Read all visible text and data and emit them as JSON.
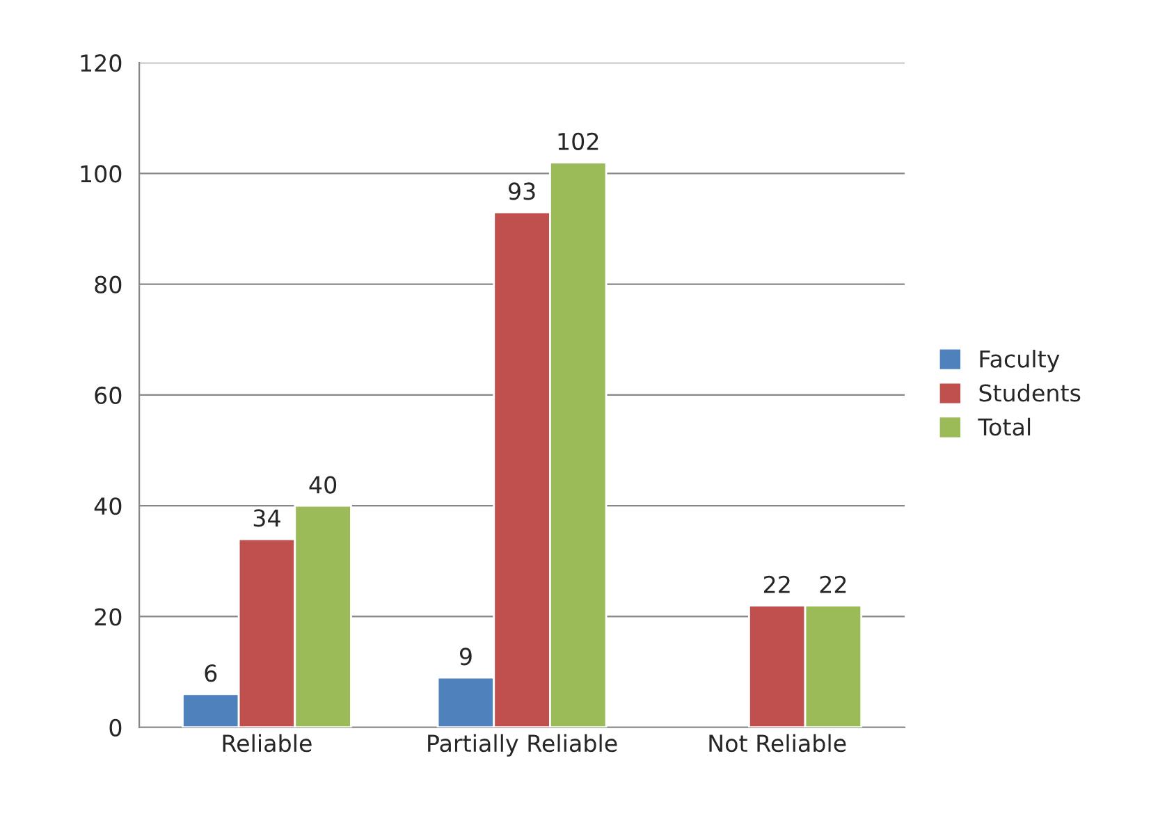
{
  "chart_data": {
    "type": "bar",
    "categories": [
      "Reliable",
      "Partially Reliable",
      "Not Reliable"
    ],
    "series": [
      {
        "name": "Faculty",
        "color": "#4f81bd",
        "values": [
          6,
          9,
          null
        ]
      },
      {
        "name": "Students",
        "color": "#c0504d",
        "values": [
          34,
          93,
          22
        ]
      },
      {
        "name": "Total",
        "color": "#9bbb59",
        "values": [
          40,
          102,
          22
        ]
      }
    ],
    "ylim": [
      0,
      120
    ],
    "yticks": [
      0,
      20,
      40,
      60,
      80,
      100,
      120
    ],
    "grid": "y",
    "legend": "right",
    "data_labels": true
  }
}
